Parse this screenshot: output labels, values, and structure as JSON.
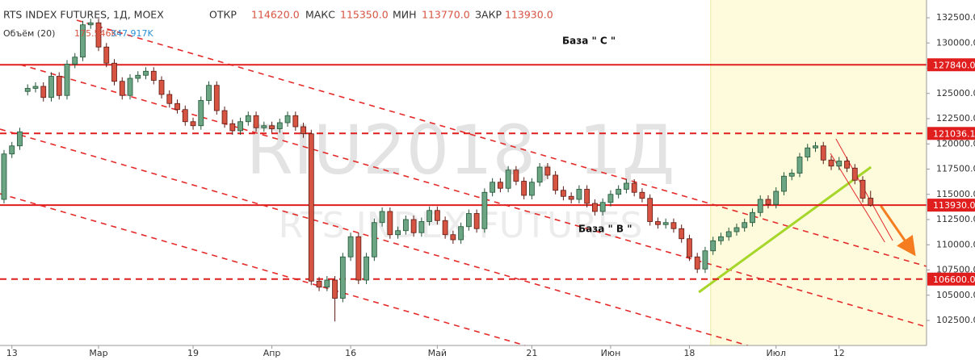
{
  "header": {
    "title": "RTS INDEX FUTURES, 1Д, MOEX",
    "ohlc": [
      {
        "label": "ОТКР",
        "value": "114620.0"
      },
      {
        "label": "МАКС",
        "value": "115350.0"
      },
      {
        "label": "МИН",
        "value": "113770.0"
      },
      {
        "label": "ЗАКР",
        "value": "113930.0"
      }
    ],
    "volume": {
      "label": "Объём (20)",
      "value": "175.546K",
      "average": "347.917K"
    }
  },
  "watermark": {
    "symbol": "RIU2018, 1Д",
    "name": "RTS INDEX FUTURES"
  },
  "annotations": [
    "База  \" С \"",
    "База  \" В \""
  ],
  "chart_data": {
    "type": "candlestick",
    "xlim": [
      -0.51,
      117.1
    ],
    "ylim": [
      100020,
      134260
    ],
    "xticks": [
      {
        "value": 1,
        "label": "13"
      },
      {
        "value": 12,
        "label": "Мар"
      },
      {
        "value": 24,
        "label": "19"
      },
      {
        "value": 34,
        "label": "Апр"
      },
      {
        "value": 44,
        "label": "16"
      },
      {
        "value": 55,
        "label": "Май"
      },
      {
        "value": 67,
        "label": "21"
      },
      {
        "value": 77,
        "label": "Июн"
      },
      {
        "value": 87,
        "label": "18"
      },
      {
        "value": 98,
        "label": "Июл"
      },
      {
        "value": 106,
        "label": "12"
      }
    ],
    "yticks": [
      {
        "value": 102500,
        "label": "102500.0"
      },
      {
        "value": 105000,
        "label": "105000.0"
      },
      {
        "value": 107500,
        "label": "107500.0"
      },
      {
        "value": 110000,
        "label": "110000.0"
      },
      {
        "value": 112500,
        "label": "112500.0"
      },
      {
        "value": 115000,
        "label": "115000.0"
      },
      {
        "value": 117500,
        "label": "117500.0"
      },
      {
        "value": 120000,
        "label": "120000.0"
      },
      {
        "value": 122500,
        "label": "122500.0"
      },
      {
        "value": 125000,
        "label": "125000.0"
      },
      {
        "value": 127500,
        "label": "127500.0"
      },
      {
        "value": 130000,
        "label": "130000.0"
      },
      {
        "value": 132500,
        "label": "132500.0"
      }
    ],
    "up_color": "#6ba583",
    "down_color": "#d75442",
    "open": [
      114500,
      119000,
      119800,
      125200,
      125500,
      125700,
      124600,
      126700,
      124800,
      127900,
      128600,
      131800,
      132000,
      129600,
      128000,
      126200,
      124800,
      126500,
      126800,
      127200,
      126300,
      124900,
      124000,
      123400,
      122200,
      121800,
      124300,
      125800,
      123300,
      122000,
      121300,
      122200,
      122800,
      121600,
      121800,
      121500,
      122100,
      122800,
      121700,
      121000,
      106400,
      105800,
      106500,
      104700,
      108800,
      110800,
      106500,
      108800,
      112200,
      113300,
      111000,
      111400,
      112500,
      111200,
      112300,
      113400,
      112400,
      111000,
      110500,
      111800,
      113100,
      111600,
      115200,
      116200,
      115600,
      117400,
      116300,
      114900,
      116200,
      117700,
      116900,
      115400,
      114800,
      114500,
      115500,
      114100,
      113300,
      114200,
      115000,
      115500,
      116100,
      115200,
      114600,
      112300,
      112000,
      112200,
      111600,
      110600,
      108800,
      107600,
      109400,
      110400,
      110800,
      111300,
      111700,
      112200,
      113200,
      114500,
      114000,
      115300,
      116800,
      117100,
      118700,
      119600,
      119800,
      118400,
      117800,
      118300,
      117600,
      116400,
      114620
    ],
    "high": [
      119400,
      120200,
      121600,
      125900,
      126100,
      126100,
      127100,
      127100,
      128300,
      129000,
      132200,
      132400,
      132400,
      130000,
      128400,
      126600,
      126900,
      127200,
      127600,
      127600,
      126700,
      125300,
      124400,
      123800,
      122600,
      124700,
      126200,
      126200,
      123700,
      122400,
      122600,
      123200,
      123200,
      122200,
      122200,
      122500,
      123200,
      123200,
      122100,
      121400,
      106800,
      106900,
      106900,
      109200,
      111200,
      111200,
      109200,
      112600,
      113700,
      113700,
      111800,
      112900,
      112900,
      112700,
      113800,
      113800,
      112800,
      111400,
      112200,
      113500,
      113500,
      115600,
      116600,
      116600,
      117800,
      117800,
      116700,
      116600,
      118100,
      118100,
      117300,
      115800,
      115200,
      115900,
      115900,
      114500,
      114600,
      115400,
      115900,
      116500,
      116500,
      115600,
      115000,
      112700,
      112600,
      112600,
      112000,
      111000,
      109200,
      109800,
      110800,
      111200,
      111700,
      112100,
      112600,
      113600,
      114900,
      114900,
      115700,
      117200,
      117500,
      119100,
      120000,
      120200,
      120200,
      118800,
      118700,
      118700,
      118000,
      116800,
      115350
    ],
    "low": [
      114100,
      118600,
      119400,
      124800,
      125100,
      124200,
      124200,
      124400,
      124400,
      127500,
      128200,
      131400,
      129200,
      127600,
      125800,
      124400,
      124400,
      126100,
      126400,
      125900,
      124500,
      123600,
      123000,
      121800,
      121400,
      121400,
      123900,
      122900,
      121600,
      120900,
      120900,
      121800,
      121200,
      121200,
      121100,
      121100,
      121700,
      121300,
      120600,
      106000,
      105400,
      105400,
      102400,
      104300,
      108400,
      106100,
      106100,
      108400,
      111800,
      110600,
      110600,
      111000,
      110800,
      110800,
      111900,
      112000,
      110600,
      110100,
      110100,
      111400,
      111200,
      111200,
      114800,
      115200,
      115200,
      115900,
      114500,
      114500,
      115800,
      116500,
      115000,
      114400,
      114100,
      114100,
      113700,
      112900,
      112900,
      113800,
      114600,
      115100,
      114800,
      114200,
      111900,
      111600,
      111600,
      111200,
      110200,
      108400,
      107200,
      107200,
      109000,
      110000,
      110400,
      110900,
      111300,
      111800,
      112800,
      113600,
      113600,
      114900,
      116400,
      116700,
      118300,
      119200,
      118000,
      117400,
      117400,
      117200,
      116000,
      114200,
      113770
    ],
    "close": [
      119000,
      119800,
      121200,
      125500,
      125700,
      124600,
      126700,
      124800,
      127900,
      128600,
      131800,
      132000,
      129600,
      128000,
      126200,
      124800,
      126500,
      126800,
      127200,
      126300,
      124900,
      124000,
      123400,
      122200,
      121800,
      124300,
      125800,
      123300,
      122000,
      121300,
      122200,
      122800,
      121600,
      121800,
      121500,
      122100,
      122800,
      121700,
      121000,
      106400,
      105800,
      106500,
      104700,
      108800,
      110800,
      106500,
      108800,
      112200,
      113300,
      111000,
      111400,
      112500,
      111200,
      112300,
      113400,
      112400,
      111000,
      110500,
      111800,
      113100,
      111600,
      115200,
      116200,
      115600,
      117400,
      116300,
      114900,
      116200,
      117700,
      116900,
      115400,
      114800,
      114500,
      115500,
      114100,
      113300,
      114200,
      115000,
      115500,
      116100,
      115200,
      114600,
      112300,
      112000,
      112200,
      111600,
      110600,
      108800,
      107600,
      109400,
      110400,
      110800,
      111300,
      111700,
      112200,
      113200,
      114500,
      114000,
      115300,
      116800,
      117100,
      118700,
      119600,
      119800,
      118400,
      117800,
      118300,
      117600,
      116400,
      114620,
      113930
    ],
    "levels": [
      {
        "value": 127840,
        "label": "127840.0",
        "style": "solid"
      },
      {
        "value": 121036.1,
        "label": "121036.10",
        "style": "dashed"
      },
      {
        "value": 113930,
        "label": "113930.0",
        "style": "solid"
      },
      {
        "value": 106600,
        "label": "106600.0",
        "style": "dashed"
      }
    ],
    "level_color": "#e01e1e",
    "highlight": {
      "from": 89.7,
      "color": "#fdfbdc"
    },
    "trend_lines": [
      {
        "color": "#e52a2a",
        "style": "dashed",
        "x": [
          9.23,
          117.1
        ],
        "y": [
          132260,
          107860
        ]
      },
      {
        "color": "#e52a2a",
        "style": "dashed",
        "x": [
          2.05,
          117.1
        ],
        "y": [
          127860,
          101860
        ]
      },
      {
        "color": "#e52a2a",
        "style": "dashed",
        "x": [
          -0.51,
          94.4
        ],
        "y": [
          121460,
          100020
        ]
      },
      {
        "color": "#e52a2a",
        "style": "dashed",
        "x": [
          -0.51,
          66.15
        ],
        "y": [
          115060,
          100020
        ]
      },
      {
        "color": "#a6d62a",
        "style": "solid",
        "x": [
          88.2,
          110.05
        ],
        "y": [
          105300,
          117700
        ]
      },
      {
        "color": "#e52a2a",
        "style": "thin",
        "x": [
          105.6,
          112.8
        ],
        "y": [
          120500,
          110420
        ]
      },
      {
        "color": "#e52a2a",
        "style": "thin",
        "x": [
          104.9,
          111.8
        ],
        "y": [
          119060,
          110260
        ]
      },
      {
        "color": "#f57c1f",
        "style": "arrow",
        "x": [
          111.3,
          115.2
        ],
        "y": [
          113860,
          109460
        ]
      }
    ]
  }
}
